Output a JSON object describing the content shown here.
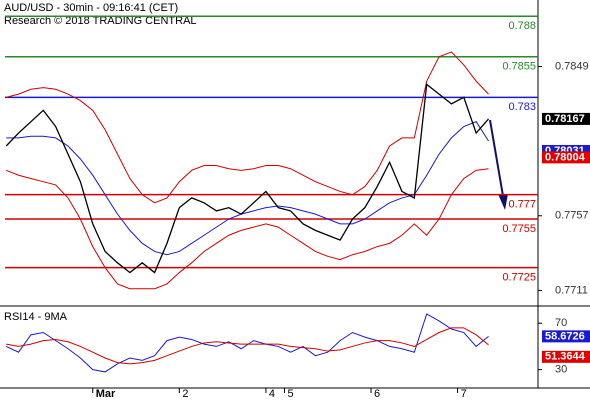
{
  "chart_data": [
    {
      "type": "line",
      "title": "AUD/USD - 30min - 09:16:41 (CET)",
      "subtitle": "Research © 2018 TRADING CENTRAL",
      "x": [
        0,
        1,
        2,
        3,
        4,
        5,
        6,
        7,
        8,
        9,
        10,
        11,
        12,
        13,
        14,
        15,
        16,
        17,
        18,
        19,
        20,
        21,
        22,
        23,
        24,
        25,
        26,
        27,
        28,
        29,
        30,
        31,
        32,
        33,
        34,
        35,
        36,
        37,
        38,
        39
      ],
      "xlim": [
        -0.5,
        43
      ],
      "ylim": [
        0.7702,
        0.789
      ],
      "yticks": [
        0.7711,
        0.7757,
        0.7849
      ],
      "series": [
        {
          "color": "#d00000",
          "values": [
            0.783,
            0.7832,
            0.7835,
            0.7836,
            0.7835,
            0.7832,
            0.7828,
            0.7822,
            0.781,
            0.7795,
            0.778,
            0.777,
            0.7765,
            0.7768,
            0.7778,
            0.7785,
            0.7788,
            0.7788,
            0.7786,
            0.7785,
            0.7786,
            0.7788,
            0.7788,
            0.7786,
            0.7782,
            0.7778,
            0.7775,
            0.7772,
            0.777,
            0.7775,
            0.7785,
            0.78,
            0.7805,
            0.7805,
            0.784,
            0.7855,
            0.7858,
            0.785,
            0.784,
            0.7832
          ]
        },
        {
          "color": "#d00000",
          "values": [
            0.7785,
            0.7782,
            0.778,
            0.7778,
            0.7776,
            0.7768,
            0.7755,
            0.7738,
            0.7725,
            0.7715,
            0.7712,
            0.7712,
            0.7712,
            0.7715,
            0.7722,
            0.7728,
            0.7735,
            0.774,
            0.7745,
            0.7748,
            0.775,
            0.7752,
            0.775,
            0.7745,
            0.774,
            0.7735,
            0.7732,
            0.773,
            0.7733,
            0.7735,
            0.7738,
            0.774,
            0.7745,
            0.7752,
            0.7745,
            0.7755,
            0.777,
            0.778,
            0.7785,
            0.7786
          ]
        },
        {
          "color": "#1a1ad0",
          "values": [
            0.7805,
            0.7805,
            0.7806,
            0.7806,
            0.7805,
            0.78,
            0.7792,
            0.7782,
            0.777,
            0.7758,
            0.7748,
            0.774,
            0.7735,
            0.7733,
            0.7735,
            0.774,
            0.7745,
            0.775,
            0.7755,
            0.7758,
            0.776,
            0.7762,
            0.7763,
            0.7762,
            0.776,
            0.7758,
            0.7755,
            0.7752,
            0.7752,
            0.7755,
            0.776,
            0.7765,
            0.7768,
            0.777,
            0.7782,
            0.7795,
            0.7805,
            0.7812,
            0.7815,
            0.78031
          ]
        },
        {
          "color": "#000000",
          "values": [
            0.78,
            0.7808,
            0.7815,
            0.7822,
            0.7812,
            0.7795,
            0.7778,
            0.7752,
            0.7735,
            0.7728,
            0.7722,
            0.7728,
            0.7722,
            0.774,
            0.7762,
            0.7768,
            0.7765,
            0.776,
            0.7762,
            0.7758,
            0.7765,
            0.7772,
            0.7762,
            0.776,
            0.7752,
            0.7748,
            0.7745,
            0.7742,
            0.7755,
            0.7762,
            0.7775,
            0.779,
            0.7772,
            0.7768,
            0.7838,
            0.7832,
            0.7826,
            0.783,
            0.7808,
            0.78167
          ]
        }
      ],
      "levels": [
        {
          "value": 0.788,
          "color": "#2a8a2a"
        },
        {
          "value": 0.7855,
          "color": "#2a8a2a"
        },
        {
          "value": 0.783,
          "color": "#1a1ad0"
        },
        {
          "value": 0.777,
          "color": "#d00000"
        },
        {
          "value": 0.7755,
          "color": "#d00000"
        },
        {
          "value": 0.7725,
          "color": "#d00000"
        }
      ],
      "price_labels": [
        {
          "value": 0.78167,
          "color": "#000000"
        },
        {
          "value": 0.78031,
          "color": "#1a1ad0"
        },
        {
          "value": 0.78004,
          "color": "#e00000"
        }
      ]
    },
    {
      "type": "line",
      "title": "RSI14 - 9MA",
      "x": [
        0,
        1,
        2,
        3,
        4,
        5,
        6,
        7,
        8,
        9,
        10,
        11,
        12,
        13,
        14,
        15,
        16,
        17,
        18,
        19,
        20,
        21,
        22,
        23,
        24,
        25,
        26,
        27,
        28,
        29,
        30,
        31,
        32,
        33,
        34,
        35,
        36,
        37,
        38,
        39
      ],
      "xlim": [
        -0.5,
        43
      ],
      "xticks": [
        {
          "value": 7,
          "label": "Mar"
        },
        {
          "value": 14,
          "label": "2"
        },
        {
          "value": 21,
          "label": "4"
        },
        {
          "value": 22.5,
          "label": "5"
        },
        {
          "value": 29.5,
          "label": "6"
        },
        {
          "value": 36.5,
          "label": "7"
        }
      ],
      "ylim": [
        15,
        84
      ],
      "yticks": [
        30,
        70
      ],
      "series": [
        {
          "color": "#1a1ad0",
          "values": [
            50,
            45,
            60,
            62,
            55,
            48,
            40,
            30,
            28,
            35,
            40,
            38,
            42,
            55,
            58,
            56,
            52,
            50,
            54,
            48,
            55,
            52,
            50,
            45,
            50,
            42,
            45,
            55,
            62,
            58,
            55,
            50,
            48,
            45,
            78,
            72,
            65,
            62,
            50,
            58.6726
          ]
        },
        {
          "color": "#d00000",
          "values": [
            52,
            50,
            52,
            55,
            56,
            54,
            50,
            45,
            40,
            36,
            35,
            36,
            38,
            42,
            46,
            50,
            53,
            54,
            53,
            52,
            52,
            52,
            52,
            50,
            49,
            48,
            46,
            47,
            50,
            53,
            55,
            55,
            53,
            50,
            56,
            62,
            66,
            66,
            60,
            51.3644
          ]
        }
      ],
      "price_labels": [
        {
          "value": 58.6726,
          "color": "#1a1ad0"
        },
        {
          "value": 51.3644,
          "color": "#e00000"
        }
      ]
    }
  ]
}
